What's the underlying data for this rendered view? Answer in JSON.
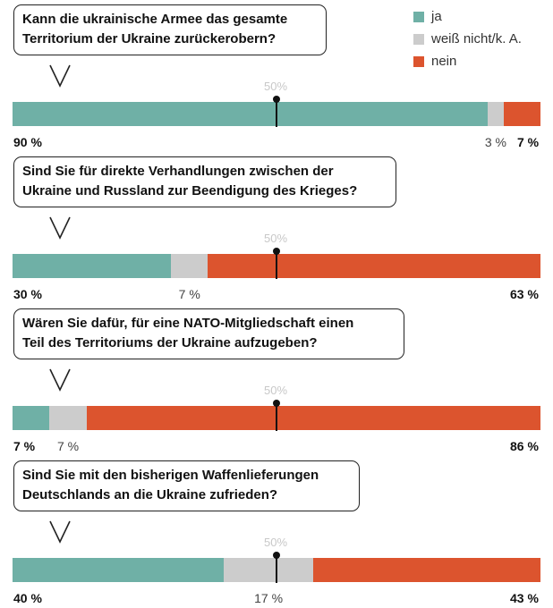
{
  "legend": [
    {
      "label": "ja",
      "color": "#6fb0a6"
    },
    {
      "label": "weiß nicht/k. A.",
      "color": "#cccccc"
    },
    {
      "label": "nein",
      "color": "#dc542e"
    }
  ],
  "midpoint_label": "50%",
  "chart_data": {
    "type": "bar",
    "orientation": "horizontal-stacked-100",
    "series": [
      {
        "name": "ja",
        "color": "#6fb0a6"
      },
      {
        "name": "weiß nicht/k. A.",
        "color": "#cccccc"
      },
      {
        "name": "nein",
        "color": "#dc542e"
      }
    ],
    "questions": [
      {
        "question": "Kann die ukrainische Armee das gesamte\nTerritorium der Ukraine zurückerobern?",
        "values": [
          90,
          3,
          7
        ],
        "labels": [
          "90 %",
          "3 %",
          "7 %"
        ]
      },
      {
        "question": "Sind Sie für direkte Verhandlungen zwischen der\nUkraine und Russland zur Beendigung des Krieges?",
        "values": [
          30,
          7,
          63
        ],
        "labels": [
          "30 %",
          "7 %",
          "63 %"
        ]
      },
      {
        "question": "Wären Sie dafür, für eine NATO-Mitgliedschaft einen\nTeil des Territoriums der Ukraine aufzugeben?",
        "values": [
          7,
          7,
          86
        ],
        "labels": [
          "7 %",
          "7 %",
          "86 %"
        ]
      },
      {
        "question": "Sind Sie mit den bisherigen Waffenlieferungen\nDeutschlands an die Ukraine zufrieden?",
        "values": [
          40,
          17,
          43
        ],
        "labels": [
          "40 %",
          "17 %",
          "43 %"
        ]
      }
    ],
    "xlim": [
      0,
      100
    ],
    "reference_line": 50
  }
}
